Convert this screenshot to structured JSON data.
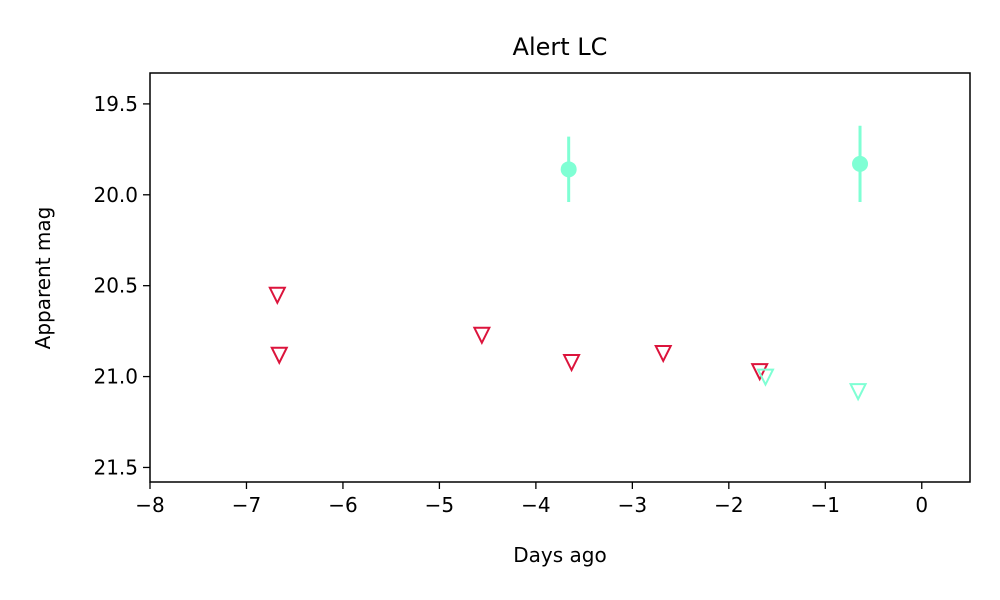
{
  "chart_data": {
    "type": "scatter",
    "title": "Alert LC",
    "xlabel": "Days ago",
    "ylabel": "Apparent mag",
    "xlim": [
      -8,
      0.5
    ],
    "ylim": [
      21.58,
      19.33
    ],
    "y_inverted": true,
    "x_ticks": [
      -8,
      -7,
      -6,
      -5,
      -4,
      -3,
      -2,
      -1,
      0
    ],
    "x_tick_labels": [
      "−8",
      "−7",
      "−6",
      "−5",
      "−4",
      "−3",
      "−2",
      "−1",
      "0"
    ],
    "y_ticks": [
      19.5,
      20.0,
      20.5,
      21.0,
      21.5
    ],
    "y_tick_labels": [
      "19.5",
      "20.0",
      "20.5",
      "21.0",
      "21.5"
    ],
    "grid": false,
    "series": [
      {
        "kind": "detection",
        "color": "#7fffd4",
        "marker": "circle",
        "points": [
          {
            "x": -3.66,
            "y": 19.86,
            "err": 0.18
          },
          {
            "x": -0.64,
            "y": 19.83,
            "err": 0.21
          }
        ]
      },
      {
        "kind": "upper-limit",
        "color": "#dc143c",
        "marker": "triangle-down-open",
        "points": [
          {
            "x": -6.68,
            "y": 20.55
          },
          {
            "x": -6.66,
            "y": 20.88
          },
          {
            "x": -4.56,
            "y": 20.77
          },
          {
            "x": -3.63,
            "y": 20.92
          },
          {
            "x": -2.68,
            "y": 20.87
          },
          {
            "x": -1.68,
            "y": 20.97
          }
        ]
      },
      {
        "kind": "upper-limit",
        "color": "#7fffd4",
        "marker": "triangle-down-open",
        "points": [
          {
            "x": -1.62,
            "y": 21.0
          },
          {
            "x": -0.66,
            "y": 21.08
          }
        ]
      }
    ]
  }
}
